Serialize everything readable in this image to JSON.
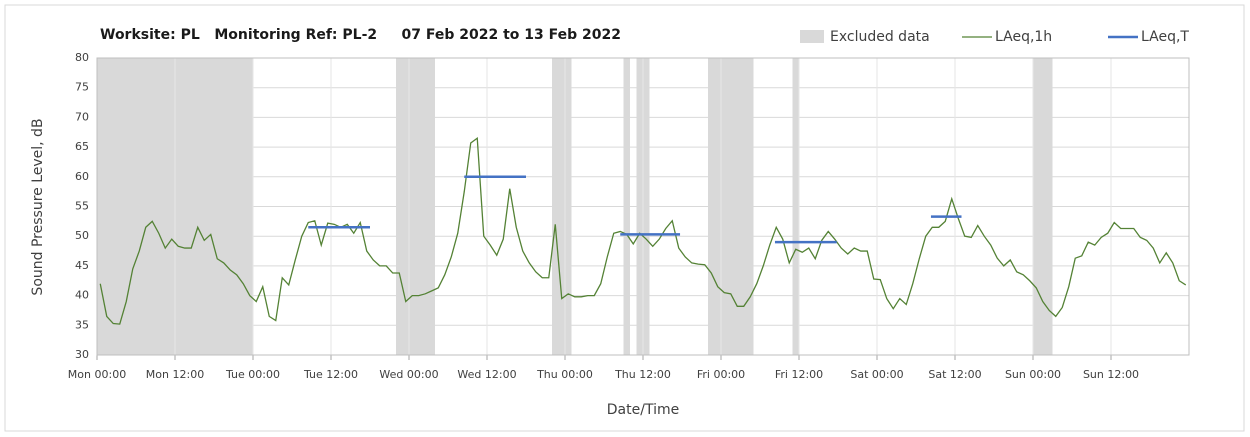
{
  "chart_data": {
    "type": "line",
    "title": "Worksite: PL   Monitoring Ref: PL-2     07 Feb 2022 to 13 Feb 2022",
    "x_label": "Date/Time",
    "y_label": "Sound Pressure Level, dB",
    "xlim": [
      0,
      168
    ],
    "xticks": [
      {
        "value": 0,
        "label": "Mon 00:00"
      },
      {
        "value": 12,
        "label": "Mon 12:00"
      },
      {
        "value": 24,
        "label": "Tue 00:00"
      },
      {
        "value": 36,
        "label": "Tue 12:00"
      },
      {
        "value": 48,
        "label": "Wed 00:00"
      },
      {
        "value": 60,
        "label": "Wed 12:00"
      },
      {
        "value": 72,
        "label": "Thu 00:00"
      },
      {
        "value": 84,
        "label": "Thu 12:00"
      },
      {
        "value": 96,
        "label": "Fri 00:00"
      },
      {
        "value": 108,
        "label": "Fri 12:00"
      },
      {
        "value": 120,
        "label": "Sat 00:00"
      },
      {
        "value": 132,
        "label": "Sat 12:00"
      },
      {
        "value": 144,
        "label": "Sun 00:00"
      },
      {
        "value": 156,
        "label": "Sun 12:00"
      }
    ],
    "ylim": [
      30,
      80
    ],
    "yticks": [
      30,
      35,
      40,
      45,
      50,
      55,
      60,
      65,
      70,
      75,
      80
    ],
    "grid": true,
    "legend": "top-right",
    "excluded": {
      "name": "Excluded data",
      "color": "#d9d9d9",
      "starts": [
        0,
        46,
        70,
        81,
        83,
        94,
        107,
        144
      ],
      "ends": [
        24,
        52,
        73,
        82,
        85,
        101,
        108,
        147
      ]
    },
    "series": [
      {
        "name": "LAeq,1h",
        "color": "#548235",
        "x": [
          0.5,
          1.5,
          2.5,
          3.5,
          4.5,
          5.5,
          6.5,
          7.5,
          8.5,
          9.5,
          10.5,
          11.5,
          12.5,
          13.5,
          14.5,
          15.5,
          16.5,
          17.5,
          18.5,
          19.5,
          20.5,
          21.5,
          22.5,
          23.5,
          24.5,
          25.5,
          26.5,
          27.5,
          28.5,
          29.5,
          30.5,
          31.5,
          32.5,
          33.5,
          34.5,
          35.5,
          36.5,
          37.5,
          38.5,
          39.5,
          40.5,
          41.5,
          42.5,
          43.5,
          44.5,
          45.5,
          46.5,
          47.5,
          48.5,
          49.5,
          50.5,
          51.5,
          52.5,
          53.5,
          54.5,
          55.5,
          56.5,
          57.5,
          58.5,
          59.5,
          60.5,
          61.5,
          62.5,
          63.5,
          64.5,
          65.5,
          66.5,
          67.5,
          68.5,
          69.5,
          70.5,
          71.5,
          72.5,
          73.5,
          74.5,
          75.5,
          76.5,
          77.5,
          78.5,
          79.5,
          80.5,
          81.5,
          82.5,
          83.5,
          84.5,
          85.5,
          86.5,
          87.5,
          88.5,
          89.5,
          90.5,
          91.5,
          92.5,
          93.5,
          94.5,
          95.5,
          96.5,
          97.5,
          98.5,
          99.5,
          100.5,
          101.5,
          102.5,
          103.5,
          104.5,
          105.5,
          106.5,
          107.5,
          108.5,
          109.5,
          110.5,
          111.5,
          112.5,
          113.5,
          114.5,
          115.5,
          116.5,
          117.5,
          118.5,
          119.5,
          120.5,
          121.5,
          122.5,
          123.5,
          124.5,
          125.5,
          126.5,
          127.5,
          128.5,
          129.5,
          130.5,
          131.5,
          132.5,
          133.5,
          134.5,
          135.5,
          136.5,
          137.5,
          138.5,
          139.5,
          140.5,
          141.5,
          142.5,
          143.5,
          144.5,
          145.5,
          146.5,
          147.5,
          148.5,
          149.5,
          150.5,
          151.5,
          152.5,
          153.5,
          154.5,
          155.5,
          156.5,
          157.5,
          158.5,
          159.5,
          160.5,
          161.5,
          162.5,
          163.5,
          164.5,
          165.5,
          166.5,
          167.5
        ],
        "values": [
          42,
          36.5,
          35.3,
          35.2,
          39,
          44.5,
          47.5,
          51.5,
          52.5,
          50.5,
          48,
          49.5,
          48.3,
          48,
          48,
          51.5,
          49.3,
          50.3,
          46.2,
          45.5,
          44.3,
          43.5,
          42,
          40,
          39,
          41.5,
          36.5,
          35.8,
          43,
          41.8,
          46,
          50,
          52.3,
          52.6,
          48.5,
          52.2,
          52,
          51.5,
          52,
          50.5,
          52.3,
          47.5,
          46,
          45,
          45,
          43.8,
          43.8,
          39,
          40,
          40,
          40.3,
          40.8,
          41.3,
          43.5,
          46.5,
          50.5,
          57.5,
          65.7,
          66.5,
          50,
          48.5,
          46.8,
          49.5,
          58,
          51.5,
          47.5,
          45.5,
          44,
          43,
          43,
          52,
          39.5,
          40.3,
          39.8,
          39.8,
          40,
          40,
          42,
          46.5,
          50.5,
          50.8,
          50.3,
          48.7,
          50.5,
          49.5,
          48.3,
          49.5,
          51.3,
          52.6,
          48,
          46.5,
          45.5,
          45.3,
          45.2,
          43.8,
          41.5,
          40.5,
          40.3,
          38.2,
          38.2,
          39.8,
          42,
          45,
          48.5,
          51.5,
          49.5,
          45.5,
          47.8,
          47.3,
          48,
          46.2,
          49.3,
          50.8,
          49.5,
          48,
          47,
          48,
          47.5,
          47.5,
          42.8,
          42.7,
          39.5,
          37.8,
          39.5,
          38.5,
          42,
          46.2,
          50,
          51.5,
          51.5,
          52.5,
          56.3,
          53,
          50,
          49.8,
          51.8,
          50,
          48.5,
          46.3,
          45,
          46,
          44,
          43.5,
          42.5,
          41.3,
          39,
          37.5,
          36.5,
          38,
          41.5,
          46.3,
          46.7,
          49,
          48.5,
          49.8,
          50.5,
          52.3,
          51.3,
          51.3,
          51.3,
          49.8,
          49.3,
          48,
          45.5,
          47.2,
          45.5,
          42.5,
          41.8
        ]
      },
      {
        "name": "LAeq,T",
        "color": "#4472c4",
        "starts": [
          32.5,
          56.5,
          80.5,
          104.3,
          128.3
        ],
        "ends": [
          42,
          66,
          89.7,
          113.8,
          133
        ],
        "values": [
          51.5,
          60,
          50.3,
          49,
          53.3
        ]
      }
    ]
  }
}
